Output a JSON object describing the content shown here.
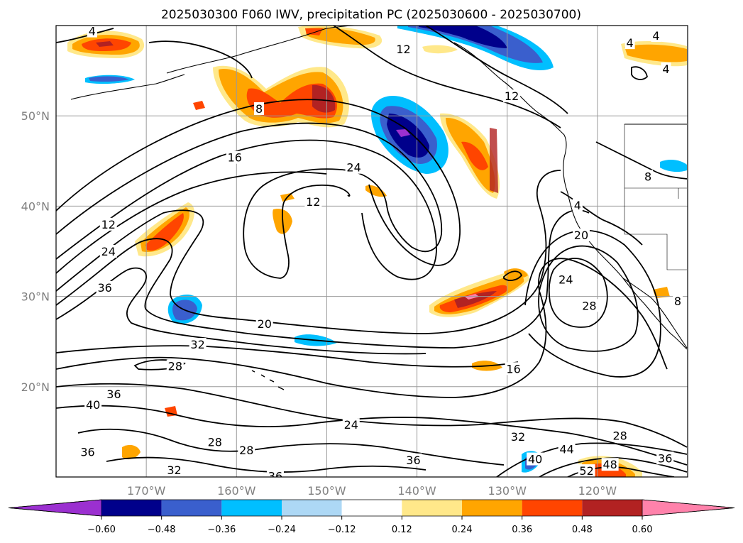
{
  "title": "2025030300 F060 IWV, precipitation PC (2025030600 - 2025030700)",
  "map": {
    "lon_ticks": [
      {
        "lon": -170,
        "label": "170°W"
      },
      {
        "lon": -160,
        "label": "160°W"
      },
      {
        "lon": -150,
        "label": "150°W"
      },
      {
        "lon": -140,
        "label": "140°W"
      },
      {
        "lon": -130,
        "label": "130°W"
      },
      {
        "lon": -120,
        "label": "120°W"
      }
    ],
    "lat_ticks": [
      {
        "lat": 20,
        "label": "20°N"
      },
      {
        "lat": 30,
        "label": "30°N"
      },
      {
        "lat": 40,
        "label": "40°N"
      },
      {
        "lat": 50,
        "label": "50°N"
      }
    ],
    "extent": {
      "lon_min": -180,
      "lon_max": -110,
      "lat_min": 10,
      "lat_max": 60
    },
    "grid": true,
    "iwv_contour_labels": [
      {
        "text": "4",
        "lon": -176,
        "lat": 59.4
      },
      {
        "text": "8",
        "lon": -157.5,
        "lat": 50.8
      },
      {
        "text": "12",
        "lon": -141.5,
        "lat": 57.4
      },
      {
        "text": "12",
        "lon": -129.5,
        "lat": 52.2
      },
      {
        "text": "16",
        "lon": -160.2,
        "lat": 45.4
      },
      {
        "text": "24",
        "lon": -147,
        "lat": 44.3
      },
      {
        "text": "12",
        "lon": -151.5,
        "lat": 40.5
      },
      {
        "text": "12",
        "lon": -174.2,
        "lat": 38.0
      },
      {
        "text": "24",
        "lon": -174.2,
        "lat": 35.0
      },
      {
        "text": "36",
        "lon": -174.6,
        "lat": 31.0
      },
      {
        "text": "20",
        "lon": -156.9,
        "lat": 27.0
      },
      {
        "text": "32",
        "lon": -164.3,
        "lat": 24.7
      },
      {
        "text": "28",
        "lon": -166.8,
        "lat": 22.3
      },
      {
        "text": "16",
        "lon": -129.3,
        "lat": 22.0
      },
      {
        "text": "20",
        "lon": -121.8,
        "lat": 36.8
      },
      {
        "text": "24",
        "lon": -123.5,
        "lat": 31.9
      },
      {
        "text": "28",
        "lon": -120.9,
        "lat": 29.0
      },
      {
        "text": "4",
        "lon": -122.2,
        "lat": 40.1
      },
      {
        "text": "36",
        "lon": -173.6,
        "lat": 19.2
      },
      {
        "text": "40",
        "lon": -175.9,
        "lat": 18.0
      },
      {
        "text": "24",
        "lon": -147.3,
        "lat": 15.8
      },
      {
        "text": "28",
        "lon": -162.4,
        "lat": 13.9
      },
      {
        "text": "28",
        "lon": -158.9,
        "lat": 13.0
      },
      {
        "text": "36",
        "lon": -176.5,
        "lat": 12.8
      },
      {
        "text": "32",
        "lon": -166.9,
        "lat": 10.8
      },
      {
        "text": "36",
        "lon": -155.7,
        "lat": 10.1
      },
      {
        "text": "36",
        "lon": -140.4,
        "lat": 11.9
      },
      {
        "text": "32",
        "lon": -128.8,
        "lat": 14.5
      },
      {
        "text": "44",
        "lon": -123.4,
        "lat": 13.1
      },
      {
        "text": "40",
        "lon": -126.9,
        "lat": 12.0
      },
      {
        "text": "52",
        "lon": -121.2,
        "lat": 10.7
      },
      {
        "text": "48",
        "lon": -118.6,
        "lat": 11.4
      },
      {
        "text": "28",
        "lon": -117.5,
        "lat": 14.6
      },
      {
        "text": "36",
        "lon": -112.5,
        "lat": 12.1
      },
      {
        "text": "4",
        "lon": -116.4,
        "lat": 58.1
      },
      {
        "text": "4",
        "lon": -113.5,
        "lat": 58.9
      },
      {
        "text": "4",
        "lon": -112.4,
        "lat": 55.2
      },
      {
        "text": "8",
        "lon": -114.4,
        "lat": 43.3
      },
      {
        "text": "8",
        "lon": -111.1,
        "lat": 29.5
      }
    ]
  },
  "colorbar": {
    "ticks": [
      "−0.60",
      "−0.48",
      "−0.36",
      "−0.24",
      "−0.12",
      "0.12",
      "0.24",
      "0.36",
      "0.48",
      "0.60"
    ],
    "colors": [
      "#9b30d0",
      "#00008b",
      "#3a5fcd",
      "#00bfff",
      "#add8f5",
      "#ffffff",
      "#ffe88a",
      "#ffa500",
      "#ff4500",
      "#b22222",
      "#ff82ab"
    ],
    "extend": "both"
  }
}
